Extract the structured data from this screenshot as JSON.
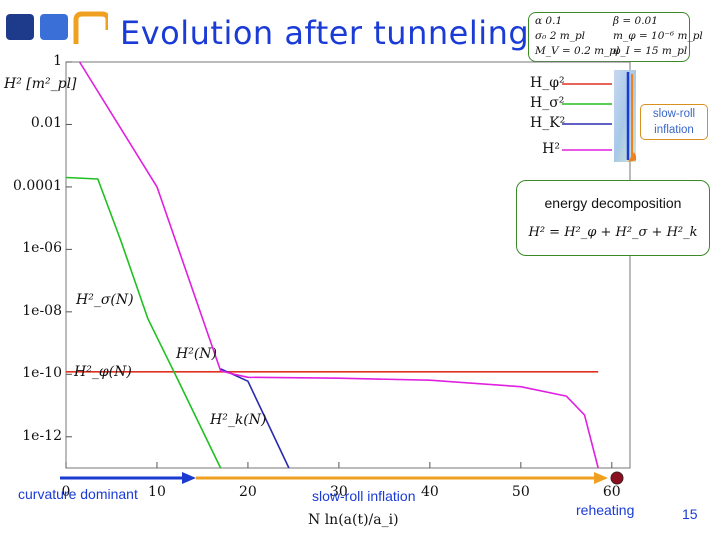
{
  "slide": {
    "title": "Evolution after tunneling",
    "page_number": "15",
    "logo_colors": [
      "#1e3a8a",
      "#3b6fd8",
      "#f0a020"
    ]
  },
  "params": {
    "row1": [
      "α 0.1",
      "β = 0.01"
    ],
    "row2": [
      "σ₀ 2 m_pl",
      "m_φ = 10⁻⁶ m_pl"
    ],
    "row3": [
      "M_V = 0.2 m_pl",
      "φ_I = 15 m_pl"
    ]
  },
  "callouts": {
    "slow_roll_line1": "slow-roll",
    "slow_roll_line2": "inflation",
    "energy_label": "energy decomposition",
    "energy_equation": "H² = H²_φ + H²_σ + H²_k"
  },
  "labels": {
    "curvature": "curvature dominant",
    "slow_roll": "slow-roll inflation",
    "reheating": "reheating",
    "n_definition": "N    ln(a(t)/a_i)",
    "ylabel": "H² [m²_pl]",
    "curve_H2": "H²(N)",
    "curve_Hsigma": "H²_σ(N)",
    "curve_Hphi": "H²_φ(N)",
    "curve_Hk": "H²_k(N)"
  },
  "chart_data": {
    "type": "line",
    "xlabel": "",
    "ylabel": "H² [m²_pl]",
    "ylog": true,
    "xlim": [
      0,
      62
    ],
    "ylim": [
      1e-13,
      1
    ],
    "y_tick_labels": [
      "1",
      "0.01",
      "0.0001",
      "1e-06",
      "1e-08",
      "1e-10",
      "1e-12"
    ],
    "x_tick_labels": [
      "0",
      "10",
      "20",
      "30",
      "40",
      "50",
      "60"
    ],
    "legend_position": "top-right",
    "series": [
      {
        "name": "H_φ²",
        "color": "#e03020",
        "x": [
          0,
          1,
          58.5
        ],
        "y": [
          1.2e-10,
          1.2e-10,
          1.2e-10
        ]
      },
      {
        "name": "H_σ²",
        "color": "#20c020",
        "x": [
          0,
          3.5,
          6,
          9,
          12,
          17
        ],
        "y": [
          0.0002,
          0.00018,
          2e-06,
          6e-09,
          1e-10,
          1e-13
        ]
      },
      {
        "name": "H_K²",
        "color": "#2a2ab0",
        "x": [
          17,
          20,
          24.5
        ],
        "y": [
          1.5e-10,
          6e-11,
          1e-13
        ]
      },
      {
        "name": "H²",
        "color": "#e020e0",
        "x": [
          1.5,
          10,
          17,
          18.5,
          20,
          30,
          40,
          50,
          55,
          57,
          58.5
        ],
        "y": [
          1,
          0.0001,
          1.3e-10,
          1e-10,
          8e-11,
          7.5e-11,
          6.5e-11,
          4e-11,
          2e-11,
          5e-12,
          1e-13
        ]
      }
    ]
  }
}
